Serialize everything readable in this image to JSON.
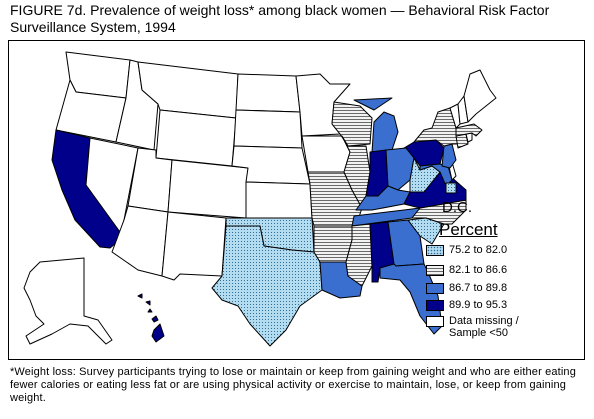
{
  "figure": {
    "title_line1": "FIGURE 7d. Prevalence of weight loss* among black women — Behavioral Risk Factor",
    "title_line2": "Surveillance System, 1994"
  },
  "map": {
    "dc_label": "D.C.",
    "dc_category": "c1"
  },
  "legend": {
    "title": "Percent",
    "items": [
      {
        "id": "c1",
        "label": "75.2 to 82.0",
        "color": "#b3dcf0",
        "pattern": "dots"
      },
      {
        "id": "c2",
        "label": "82.1 to 86.6",
        "color": "#e6e6e6",
        "pattern": "hlines"
      },
      {
        "id": "c3",
        "label": "86.7 to 89.8",
        "color": "#3a6fd0",
        "pattern": "solid"
      },
      {
        "id": "c4",
        "label": "89.9 to 95.3",
        "color": "#00008b",
        "pattern": "solid"
      },
      {
        "id": "c5",
        "label": "Data missing /\nSample <50",
        "color": "#ffffff",
        "pattern": "none"
      }
    ]
  },
  "states": [
    {
      "code": "CA",
      "category": "c4"
    },
    {
      "code": "PA",
      "category": "c4"
    },
    {
      "code": "IN",
      "category": "c4"
    },
    {
      "code": "AL",
      "category": "c4"
    },
    {
      "code": "VA",
      "category": "c4"
    },
    {
      "code": "HI",
      "category": "c4"
    },
    {
      "code": "MD",
      "category": "c3"
    },
    {
      "code": "MI",
      "category": "c3"
    },
    {
      "code": "OH",
      "category": "c3"
    },
    {
      "code": "KY",
      "category": "c3"
    },
    {
      "code": "TN",
      "category": "c3"
    },
    {
      "code": "LA",
      "category": "c3"
    },
    {
      "code": "GA",
      "category": "c3"
    },
    {
      "code": "FL",
      "category": "c3"
    },
    {
      "code": "NJ",
      "category": "c3"
    },
    {
      "code": "WI",
      "category": "c2"
    },
    {
      "code": "IL",
      "category": "c2"
    },
    {
      "code": "MO",
      "category": "c2"
    },
    {
      "code": "AR",
      "category": "c2"
    },
    {
      "code": "MS",
      "category": "c2"
    },
    {
      "code": "NY",
      "category": "c2"
    },
    {
      "code": "NC",
      "category": "c2"
    },
    {
      "code": "CT",
      "category": "c2"
    },
    {
      "code": "MA",
      "category": "c2"
    },
    {
      "code": "TX",
      "category": "c1"
    },
    {
      "code": "OK",
      "category": "c1"
    },
    {
      "code": "SC",
      "category": "c1"
    },
    {
      "code": "WV",
      "category": "c1"
    },
    {
      "code": "WA",
      "category": "c5"
    },
    {
      "code": "OR",
      "category": "c5"
    },
    {
      "code": "ID",
      "category": "c5"
    },
    {
      "code": "MT",
      "category": "c5"
    },
    {
      "code": "WY",
      "category": "c5"
    },
    {
      "code": "NV",
      "category": "c5"
    },
    {
      "code": "UT",
      "category": "c5"
    },
    {
      "code": "CO",
      "category": "c5"
    },
    {
      "code": "AZ",
      "category": "c5"
    },
    {
      "code": "NM",
      "category": "c5"
    },
    {
      "code": "ND",
      "category": "c5"
    },
    {
      "code": "SD",
      "category": "c5"
    },
    {
      "code": "NE",
      "category": "c5"
    },
    {
      "code": "KS",
      "category": "c5"
    },
    {
      "code": "MN",
      "category": "c5"
    },
    {
      "code": "IA",
      "category": "c5"
    },
    {
      "code": "ME",
      "category": "c5"
    },
    {
      "code": "VT",
      "category": "c5"
    },
    {
      "code": "NH",
      "category": "c5"
    },
    {
      "code": "RI",
      "category": "c5"
    },
    {
      "code": "DE",
      "category": "c5"
    },
    {
      "code": "AK",
      "category": "c5"
    }
  ],
  "footnote": "*Weight loss: Survey participants trying to lose or maintain or keep from gaining weight and who are either eating fewer calories or eating less fat or are using physical activity or exercise to maintain, lose, or keep from gaining weight."
}
